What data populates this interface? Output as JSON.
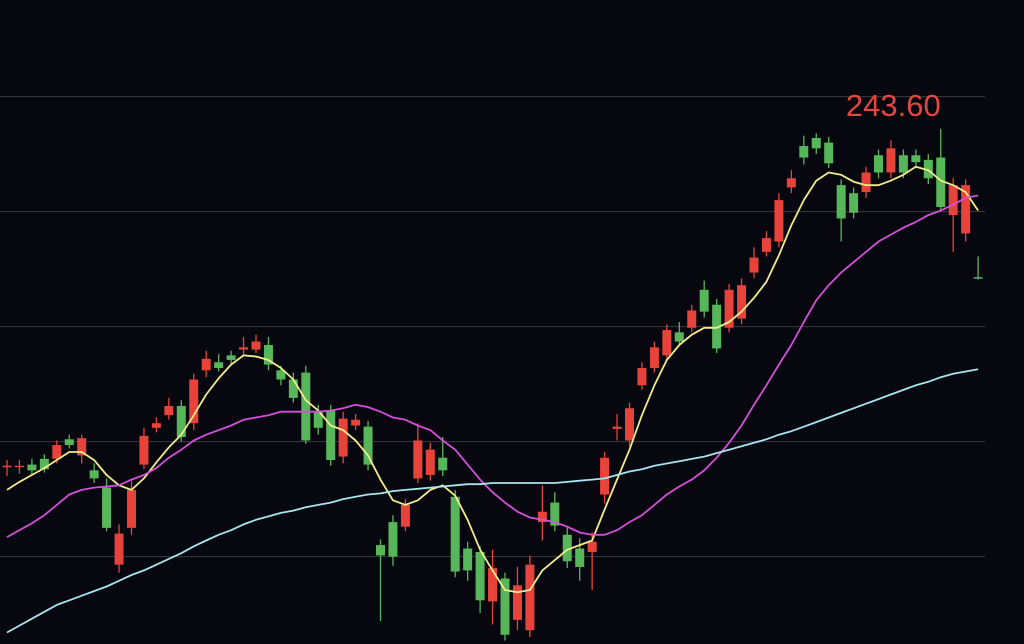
{
  "chart_data": {
    "type": "candlestick",
    "open": [
      214.2,
      214.2,
      214.4,
      214.9,
      214.9,
      216.6,
      215.2,
      213.9,
      212.4,
      205.7,
      208.9,
      214.4,
      217.6,
      218.7,
      219.5,
      218.0,
      222.6,
      223.3,
      223.9,
      224.4,
      224.4,
      224.8,
      222.6,
      221.8,
      222.4,
      219.0,
      219.1,
      215.1,
      217.8,
      217.7,
      207.4,
      209.4,
      209.0,
      213.2,
      213.5,
      215.0,
      211.6,
      207.1,
      206.8,
      202.5,
      204.5,
      200.9,
      200.0,
      209.4,
      211.1,
      208.3,
      207.1,
      206.8,
      211.8,
      217.5,
      216.5,
      221.3,
      222.8,
      223.9,
      225.9,
      226.3,
      229.6,
      228.3,
      226.3,
      227.1,
      231.1,
      232.9,
      233.8,
      238.5,
      242.1,
      242.8,
      242.4,
      238.7,
      238.0,
      238.1,
      241.3,
      239.8,
      241.3,
      241.3,
      240.9,
      241.1,
      236.1,
      234.5,
      230.7
    ],
    "high": [
      214.8,
      214.8,
      214.9,
      215.3,
      216.5,
      217.0,
      217.0,
      214.5,
      213.2,
      209.2,
      213.0,
      217.6,
      218.5,
      220.2,
      220.0,
      222.3,
      224.3,
      224.0,
      224.3,
      225.5,
      225.7,
      225.5,
      223.0,
      222.4,
      223.0,
      219.6,
      219.6,
      219.0,
      218.8,
      218.2,
      207.9,
      210.0,
      211.4,
      218.0,
      216.3,
      216.8,
      212.2,
      207.7,
      207.3,
      207.0,
      205.0,
      205.5,
      206.5,
      212.6,
      212.0,
      209.0,
      208.0,
      208.5,
      215.5,
      218.8,
      219.8,
      223.3,
      225.1,
      226.6,
      226.8,
      228.3,
      230.4,
      228.8,
      230.1,
      230.6,
      233.3,
      234.7,
      238.0,
      240.0,
      243.0,
      243.2,
      242.9,
      239.2,
      238.5,
      240.3,
      241.8,
      242.6,
      241.8,
      241.8,
      241.4,
      243.6,
      239.3,
      239.2,
      232.5
    ],
    "low": [
      213.4,
      213.6,
      213.5,
      213.7,
      214.5,
      215.8,
      214.5,
      212.8,
      208.6,
      205.0,
      208.3,
      214.0,
      217.2,
      218.3,
      216.4,
      217.4,
      222.0,
      222.5,
      223.1,
      223.8,
      224.1,
      222.6,
      221.3,
      219.8,
      216.2,
      217.0,
      214.3,
      214.5,
      217.4,
      213.9,
      200.8,
      205.6,
      208.6,
      212.8,
      213.0,
      213.4,
      204.6,
      204.3,
      201.5,
      200.5,
      199.1,
      200.0,
      199.4,
      207.8,
      208.6,
      205.4,
      204.3,
      203.5,
      211.0,
      216.5,
      216.0,
      220.9,
      222.4,
      223.5,
      224.7,
      225.9,
      227.2,
      224.1,
      225.9,
      226.6,
      230.6,
      232.5,
      233.3,
      238.0,
      240.5,
      241.4,
      240.2,
      233.8,
      235.8,
      237.6,
      239.3,
      239.3,
      239.3,
      240.2,
      238.8,
      236.4,
      232.9,
      233.8,
      230.5
    ],
    "close": [
      214.3,
      214.3,
      213.9,
      214.0,
      216.1,
      216.1,
      216.7,
      213.2,
      208.9,
      208.4,
      212.2,
      216.9,
      218.0,
      219.5,
      216.8,
      221.8,
      223.6,
      222.8,
      223.5,
      224.6,
      225.1,
      223.1,
      221.8,
      220.2,
      216.5,
      217.6,
      214.8,
      218.4,
      218.3,
      214.4,
      206.5,
      206.4,
      210.9,
      216.5,
      215.7,
      213.9,
      205.1,
      205.2,
      202.6,
      205.4,
      199.6,
      203.9,
      205.7,
      210.3,
      209.1,
      206.0,
      205.5,
      207.7,
      215.0,
      217.7,
      219.3,
      222.8,
      224.6,
      226.1,
      225.1,
      227.8,
      227.7,
      224.5,
      229.6,
      230.0,
      232.4,
      234.1,
      237.4,
      239.3,
      241.1,
      241.9,
      240.6,
      235.8,
      236.3,
      239.8,
      239.8,
      241.9,
      239.8,
      240.7,
      239.3,
      236.8,
      238.7,
      238.7,
      230.6
    ],
    "up_color": "#e8433a",
    "down_color": "#58b65a",
    "lines": [
      {
        "color": "#f2ec8a",
        "values": [
          212.2,
          212.9,
          213.5,
          214.1,
          214.8,
          215.5,
          215.5,
          214.8,
          213.5,
          212.6,
          212.2,
          213.2,
          214.6,
          215.9,
          217.0,
          218.7,
          220.5,
          221.9,
          223.1,
          223.9,
          223.8,
          223.5,
          222.8,
          221.8,
          220.0,
          219.1,
          217.8,
          217.4,
          216.5,
          215.2,
          213.1,
          211.3,
          210.9,
          211.3,
          212.2,
          212.6,
          211.7,
          209.6,
          207.0,
          205.2,
          203.5,
          203.3,
          203.5,
          205.2,
          206.1,
          207.0,
          207.4,
          207.8,
          210.5,
          213.1,
          215.7,
          218.7,
          221.3,
          223.5,
          224.8,
          225.7,
          226.3,
          226.3,
          226.8,
          227.7,
          228.9,
          230.3,
          232.6,
          235.2,
          237.4,
          239.1,
          239.8,
          239.6,
          239.0,
          238.7,
          238.7,
          239.1,
          239.6,
          240.3,
          240.0,
          239.1,
          238.7,
          238.1,
          236.5
        ]
      },
      {
        "color": "#d44fd8",
        "values": [
          208.1,
          208.7,
          209.3,
          210.0,
          210.9,
          211.8,
          212.2,
          212.4,
          212.5,
          212.6,
          213.1,
          213.5,
          214.1,
          215.0,
          215.7,
          216.5,
          217.0,
          217.4,
          217.8,
          218.3,
          218.5,
          218.7,
          219.0,
          219.0,
          219.0,
          219.0,
          219.1,
          219.3,
          219.6,
          219.4,
          219.0,
          218.5,
          218.3,
          217.8,
          217.4,
          216.5,
          215.7,
          214.4,
          213.1,
          212.0,
          211.1,
          210.3,
          209.8,
          209.6,
          209.4,
          209.0,
          208.5,
          208.3,
          208.3,
          208.7,
          209.4,
          210.0,
          210.9,
          211.8,
          212.5,
          213.1,
          213.9,
          215.0,
          216.3,
          217.8,
          219.6,
          221.3,
          223.1,
          224.8,
          226.8,
          228.7,
          230.0,
          231.1,
          232.0,
          232.9,
          233.8,
          234.4,
          235.0,
          235.5,
          236.1,
          236.5,
          237.0,
          237.6,
          237.8
        ]
      },
      {
        "color": "#a8e4ef",
        "values": [
          199.8,
          200.4,
          201.0,
          201.6,
          202.2,
          202.6,
          203.0,
          203.4,
          203.8,
          204.3,
          204.8,
          205.2,
          205.7,
          206.2,
          206.7,
          207.3,
          207.8,
          208.3,
          208.7,
          209.2,
          209.6,
          209.9,
          210.2,
          210.4,
          210.7,
          210.9,
          211.1,
          211.4,
          211.6,
          211.8,
          211.9,
          212.1,
          212.2,
          212.3,
          212.4,
          212.5,
          212.6,
          212.7,
          212.7,
          212.8,
          212.8,
          212.8,
          212.8,
          212.8,
          212.8,
          212.9,
          213.0,
          213.1,
          213.2,
          213.5,
          213.8,
          214.0,
          214.3,
          214.5,
          214.7,
          214.9,
          215.1,
          215.4,
          215.7,
          216.0,
          216.3,
          216.6,
          217.0,
          217.3,
          217.7,
          218.1,
          218.5,
          218.9,
          219.3,
          219.7,
          220.1,
          220.5,
          220.9,
          221.3,
          221.6,
          222.0,
          222.3,
          222.5,
          222.7
        ]
      }
    ],
    "ylim": [
      198.8,
      254.8
    ],
    "yticks": [
      246.4,
      236.4,
      226.4,
      216.4,
      206.4
    ],
    "grid": true,
    "annotation": {
      "label": "243.60",
      "value": 243.6
    }
  }
}
